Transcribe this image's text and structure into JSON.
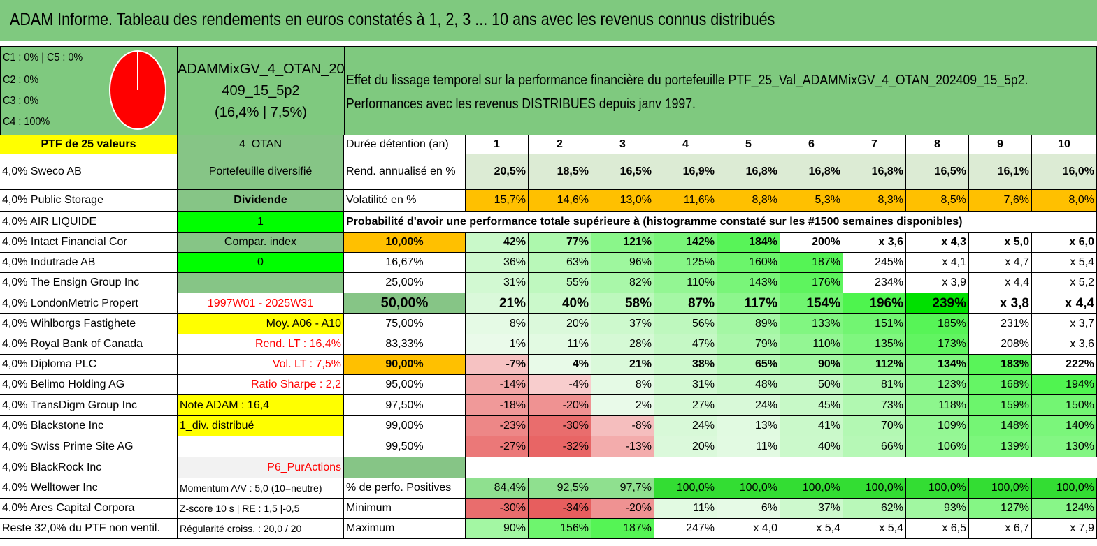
{
  "title": "ADAM Informe. Tableau des rendements en euros constatés à 1, 2, 3 ... 10 ans avec les revenus connus distribués",
  "classes": [
    "C1 : 0% | C5 : 0%",
    "C2 : 0%",
    "C3 : 0%",
    "C4 : 100%"
  ],
  "ptf_name_1": "ADAMMixGV_4_OTAN_202",
  "ptf_name_2": "409_15_5p2",
  "ptf_name_3": "(16,4% | 7,5%)",
  "effet_line1": "Effet du lissage temporel sur la performance financière du portefeuille PTF_25_Val_ADAMMixGV_4_OTAN_202409_15_5p2.",
  "effet_line2": "Performances avec les revenus DISTRIBUES depuis janv 1997.",
  "ptf_label": "PTF de 25 valeurs",
  "otan": "4_OTAN",
  "duree_label": "Durée détention (an)",
  "years": [
    "1",
    "2",
    "3",
    "4",
    "5",
    "6",
    "7",
    "8",
    "9",
    "10"
  ],
  "holdings": [
    "4,0% Sweco AB",
    "4,0% Public Storage",
    "4,0% AIR LIQUIDE",
    "4,0% Intact Financial Cor",
    "4,0% Indutrade AB",
    "4,0% The Ensign Group Inc",
    "4,0% LondonMetric Propert",
    "4,0% Wihlborgs Fastighete",
    "4,0% Royal Bank of Canada",
    "4,0% Diploma PLC",
    "4,0% Belimo Holding AG",
    "4,0% TransDigm Group Inc",
    "4,0% Blackstone Inc",
    "4,0% Swiss Prime Site AG",
    "4,0% BlackRock Inc",
    "4,0% Welltower Inc",
    "4,0% Ares Capital Corpora",
    "Reste 32,0% du PTF non ventil."
  ],
  "side": [
    "Portefeuille diversifié",
    "Dividende",
    "1",
    "Compar. index",
    "0",
    "",
    "1997W01 - 2025W31",
    "Moy. A06 - A10",
    "Rend. LT : 16,4%",
    "Vol. LT : 7,5%",
    "Ratio Sharpe : 2,2",
    "Note ADAM : 16,4",
    "1_div. distribué",
    "",
    "P6_PurActions",
    "Momentum A/V : 5,0 (10=neutre)",
    "Z-score 10 s | RE : 1,5 |-0,5",
    "Régularité croiss. : 20,0 / 20"
  ],
  "rend_label": "Rend. annualisé en %",
  "rend": [
    "20,5%",
    "18,5%",
    "16,5%",
    "16,9%",
    "16,8%",
    "16,8%",
    "16,8%",
    "16,5%",
    "16,1%",
    "16,0%"
  ],
  "vol_label": "Volatilité en %",
  "vol": [
    "15,7%",
    "14,6%",
    "13,0%",
    "11,6%",
    "8,8%",
    "5,3%",
    "8,3%",
    "8,5%",
    "7,6%",
    "8,0%"
  ],
  "proba_label": "Probabilité d'avoir une performance totale supérieure à (histogramme constaté sur les #1500 semaines disponibles)",
  "proba_rows": [
    {
      "p": "10,00%",
      "v": [
        "42%",
        "77%",
        "121%",
        "142%",
        "184%",
        "200%",
        "x 3,6",
        "x 4,3",
        "x 5,0",
        "x 6,0"
      ]
    },
    {
      "p": "16,67%",
      "v": [
        "36%",
        "63%",
        "96%",
        "125%",
        "160%",
        "187%",
        "245%",
        "x 4,1",
        "x 4,7",
        "x 5,4"
      ]
    },
    {
      "p": "25,00%",
      "v": [
        "31%",
        "55%",
        "82%",
        "110%",
        "143%",
        "176%",
        "234%",
        "x 3,9",
        "x 4,4",
        "x 5,2"
      ]
    },
    {
      "p": "50,00%",
      "v": [
        "21%",
        "40%",
        "58%",
        "87%",
        "117%",
        "154%",
        "196%",
        "239%",
        "x 3,8",
        "x 4,4"
      ]
    },
    {
      "p": "75,00%",
      "v": [
        "8%",
        "20%",
        "37%",
        "56%",
        "89%",
        "133%",
        "151%",
        "185%",
        "231%",
        "x 3,7"
      ]
    },
    {
      "p": "83,33%",
      "v": [
        "1%",
        "11%",
        "28%",
        "47%",
        "79%",
        "110%",
        "135%",
        "173%",
        "208%",
        "x 3,6"
      ]
    },
    {
      "p": "90,00%",
      "v": [
        "-7%",
        "4%",
        "21%",
        "38%",
        "65%",
        "90%",
        "112%",
        "134%",
        "183%",
        "222%"
      ]
    },
    {
      "p": "95,00%",
      "v": [
        "-14%",
        "-4%",
        "8%",
        "31%",
        "48%",
        "50%",
        "81%",
        "123%",
        "168%",
        "194%"
      ]
    },
    {
      "p": "97,50%",
      "v": [
        "-18%",
        "-20%",
        "2%",
        "27%",
        "24%",
        "45%",
        "73%",
        "118%",
        "159%",
        "150%"
      ]
    },
    {
      "p": "99,00%",
      "v": [
        "-23%",
        "-30%",
        "-8%",
        "24%",
        "13%",
        "41%",
        "70%",
        "109%",
        "148%",
        "140%"
      ]
    },
    {
      "p": "99,50%",
      "v": [
        "-27%",
        "-32%",
        "-13%",
        "20%",
        "11%",
        "40%",
        "66%",
        "106%",
        "139%",
        "130%"
      ]
    }
  ],
  "pos_label": "% de perfo. Positives",
  "pos": [
    "84,4%",
    "92,5%",
    "97,7%",
    "100,0%",
    "100,0%",
    "100,0%",
    "100,0%",
    "100,0%",
    "100,0%",
    "100,0%"
  ],
  "min_label": "Minimum",
  "min": [
    "-30%",
    "-34%",
    "-20%",
    "11%",
    "6%",
    "37%",
    "62%",
    "93%",
    "127%",
    "124%"
  ],
  "max_label": "Maximum",
  "max": [
    "90%",
    "156%",
    "187%",
    "247%",
    "x 4,0",
    "x 5,4",
    "x 5,4",
    "x 6,5",
    "x 6,7",
    "x 7,9"
  ],
  "colors": {
    "header_green": "#7fc97f",
    "yellow": "#ffff00",
    "bright_green": "#00ff00",
    "orange": "#ffc000",
    "red": "#ff0000"
  }
}
